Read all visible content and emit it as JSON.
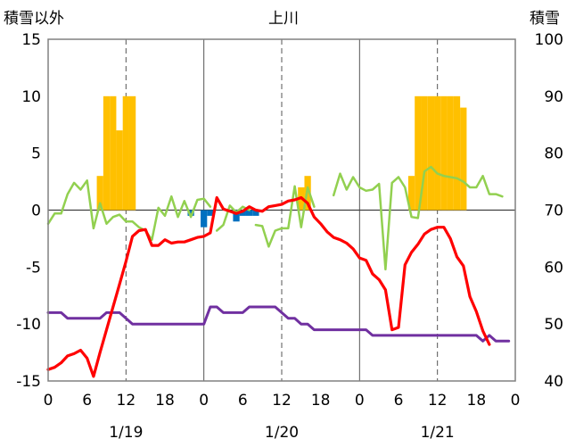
{
  "chart_data": {
    "type": "line",
    "title": "上川",
    "y_left_label": "積雪以外",
    "y_right_label": "積雪",
    "y_left_range": [
      -15,
      15
    ],
    "y_right_range": [
      40,
      100
    ],
    "y_left_ticks": [
      "15",
      "10",
      "5",
      "0",
      "-5",
      "-10",
      "-15"
    ],
    "y_right_ticks": [
      "100",
      "90",
      "80",
      "70",
      "60",
      "50",
      "40"
    ],
    "x_range_hours": [
      0,
      72
    ],
    "x_tick_labels": [
      "0",
      "6",
      "12",
      "18",
      "0",
      "6",
      "12",
      "18",
      "0",
      "6",
      "12",
      "18",
      "0"
    ],
    "date_labels": [
      "1/19",
      "1/20",
      "1/21"
    ],
    "grid": "dashed vertical lines at hour 12 of each day, solid vertical lines at day boundaries, solid horizontal line at y = 0",
    "colors": {
      "snow_depth": "#ffc000",
      "snowfall_positive": "#ffc000",
      "snowfall_negative": "#0070c0",
      "temperature": "#ff0000",
      "wind": "#92d050",
      "pressure_trend": "#7030a0"
    },
    "snowfall_bars": [
      {
        "x": 8,
        "value": 3
      },
      {
        "x": 9,
        "value": 10
      },
      {
        "x": 10,
        "value": 10
      },
      {
        "x": 11,
        "value": 7
      },
      {
        "x": 12,
        "value": 10
      },
      {
        "x": 13,
        "value": 10
      },
      {
        "x": 22,
        "value": -0.5
      },
      {
        "x": 24,
        "value": -1.5
      },
      {
        "x": 25,
        "value": -0.5
      },
      {
        "x": 29,
        "value": -1
      },
      {
        "x": 30,
        "value": -0.5
      },
      {
        "x": 31,
        "value": -0.5
      },
      {
        "x": 32,
        "value": -0.5
      },
      {
        "x": 39,
        "value": 2
      },
      {
        "x": 40,
        "value": 3
      },
      {
        "x": 56,
        "value": 3
      },
      {
        "x": 57,
        "value": 10
      },
      {
        "x": 58,
        "value": 10
      },
      {
        "x": 59,
        "value": 10
      },
      {
        "x": 60,
        "value": 10
      },
      {
        "x": 61,
        "value": 10
      },
      {
        "x": 62,
        "value": 10
      },
      {
        "x": 63,
        "value": 10
      },
      {
        "x": 64,
        "value": 9
      }
    ],
    "series": [
      {
        "key": "temperature",
        "axis": "left",
        "points": [
          [
            0,
            -14
          ],
          [
            1,
            -13.8
          ],
          [
            2,
            -13.4
          ],
          [
            3,
            -12.8
          ],
          [
            4,
            -12.6
          ],
          [
            5,
            -12.3
          ],
          [
            6,
            -13
          ],
          [
            7,
            -14.6
          ],
          [
            8,
            -12.5
          ],
          [
            9,
            -10.5
          ],
          [
            10,
            -8.5
          ],
          [
            11,
            -6.5
          ],
          [
            12,
            -4.5
          ],
          [
            13,
            -2.3
          ],
          [
            14,
            -1.8
          ],
          [
            15,
            -1.7
          ],
          [
            16,
            -3.1
          ],
          [
            17,
            -3.1
          ],
          [
            18,
            -2.6
          ],
          [
            19,
            -2.9
          ],
          [
            20,
            -2.8
          ],
          [
            21,
            -2.8
          ],
          [
            22,
            -2.6
          ],
          [
            23,
            -2.4
          ],
          [
            24,
            -2.3
          ],
          [
            25,
            -2.0
          ],
          [
            26,
            1.1
          ],
          [
            27,
            0.1
          ],
          [
            28,
            -0.1
          ],
          [
            29,
            -0.3
          ],
          [
            30,
            -0.1
          ],
          [
            31,
            0.3
          ],
          [
            32,
            0
          ],
          [
            33,
            -0.1
          ],
          [
            34,
            0.3
          ],
          [
            35,
            0.4
          ],
          [
            36,
            0.5
          ],
          [
            37,
            0.8
          ],
          [
            38,
            0.9
          ],
          [
            39,
            1.1
          ],
          [
            40,
            0.6
          ],
          [
            41,
            -0.6
          ],
          [
            42,
            -1.2
          ],
          [
            43,
            -1.9
          ],
          [
            44,
            -2.4
          ],
          [
            45,
            -2.6
          ],
          [
            46,
            -2.9
          ],
          [
            47,
            -3.4
          ],
          [
            48,
            -4.2
          ],
          [
            49,
            -4.4
          ],
          [
            50,
            -5.6
          ],
          [
            51,
            -6.1
          ],
          [
            52,
            -7.0
          ],
          [
            53,
            -10.5
          ],
          [
            54,
            -10.3
          ],
          [
            55,
            -4.8
          ],
          [
            56,
            -3.7
          ],
          [
            57,
            -3.0
          ],
          [
            58,
            -2.1
          ],
          [
            59,
            -1.7
          ],
          [
            60,
            -1.5
          ],
          [
            61,
            -1.5
          ],
          [
            62,
            -2.5
          ],
          [
            63,
            -4.1
          ],
          [
            64,
            -4.9
          ],
          [
            65,
            -7.6
          ],
          [
            66,
            -8.9
          ],
          [
            67,
            -10.6
          ],
          [
            68,
            -11.8
          ]
        ]
      },
      {
        "key": "wind",
        "axis": "left",
        "gaps_after_hours": [
          25,
          31,
          41
        ],
        "points": [
          [
            0,
            -1.2
          ],
          [
            1,
            -0.3
          ],
          [
            2,
            -0.3
          ],
          [
            3,
            1.4
          ],
          [
            4,
            2.4
          ],
          [
            5,
            1.8
          ],
          [
            6,
            2.6
          ],
          [
            7,
            -1.6
          ],
          [
            8,
            0.6
          ],
          [
            9,
            -1.2
          ],
          [
            10,
            -0.6
          ],
          [
            11,
            -0.4
          ],
          [
            12,
            -1.0
          ],
          [
            13,
            -1.0
          ],
          [
            14,
            -1.5
          ],
          [
            15,
            -1.8
          ],
          [
            16,
            -2.6
          ],
          [
            17,
            0.2
          ],
          [
            18,
            -0.5
          ],
          [
            19,
            1.2
          ],
          [
            20,
            -0.6
          ],
          [
            21,
            0.8
          ],
          [
            22,
            -0.6
          ],
          [
            23,
            0.9
          ],
          [
            24,
            1.0
          ],
          [
            25,
            0.3
          ],
          [
            26,
            -1.8
          ],
          [
            27,
            -1.3
          ],
          [
            28,
            0.4
          ],
          [
            29,
            -0.2
          ],
          [
            30,
            0.3
          ],
          [
            31,
            0.0
          ],
          [
            32,
            -1.3
          ],
          [
            33,
            -1.4
          ],
          [
            34,
            -3.2
          ],
          [
            35,
            -1.8
          ],
          [
            36,
            -1.6
          ],
          [
            37,
            -1.6
          ],
          [
            38,
            2.1
          ],
          [
            39,
            -1.5
          ],
          [
            40,
            2.0
          ],
          [
            41,
            0.3
          ],
          [
            44,
            1.3
          ],
          [
            45,
            3.2
          ],
          [
            46,
            1.8
          ],
          [
            47,
            2.9
          ],
          [
            48,
            2.0
          ],
          [
            49,
            1.7
          ],
          [
            50,
            1.8
          ],
          [
            51,
            2.3
          ],
          [
            52,
            -5.2
          ],
          [
            53,
            2.4
          ],
          [
            54,
            2.9
          ],
          [
            55,
            2.0
          ],
          [
            56,
            -0.6
          ],
          [
            57,
            -0.7
          ],
          [
            58,
            3.4
          ],
          [
            59,
            3.8
          ],
          [
            60,
            3.2
          ],
          [
            61,
            3.0
          ],
          [
            62,
            2.9
          ],
          [
            63,
            2.8
          ],
          [
            64,
            2.5
          ],
          [
            65,
            2.0
          ],
          [
            66,
            2.0
          ],
          [
            67,
            3.0
          ],
          [
            68,
            1.4
          ],
          [
            69,
            1.4
          ],
          [
            70,
            1.2
          ]
        ]
      },
      {
        "key": "pressure_trend",
        "axis": "left",
        "points": [
          [
            0,
            -9
          ],
          [
            1,
            -9
          ],
          [
            2,
            -9
          ],
          [
            3,
            -9.5
          ],
          [
            4,
            -9.5
          ],
          [
            5,
            -9.5
          ],
          [
            6,
            -9.5
          ],
          [
            7,
            -9.5
          ],
          [
            8,
            -9.5
          ],
          [
            9,
            -9
          ],
          [
            10,
            -9
          ],
          [
            11,
            -9
          ],
          [
            12,
            -9.5
          ],
          [
            13,
            -10
          ],
          [
            14,
            -10
          ],
          [
            15,
            -10
          ],
          [
            16,
            -10
          ],
          [
            17,
            -10
          ],
          [
            18,
            -10
          ],
          [
            19,
            -10
          ],
          [
            20,
            -10
          ],
          [
            21,
            -10
          ],
          [
            22,
            -10
          ],
          [
            23,
            -10
          ],
          [
            24,
            -10
          ],
          [
            25,
            -8.5
          ],
          [
            26,
            -8.5
          ],
          [
            27,
            -9
          ],
          [
            28,
            -9
          ],
          [
            29,
            -9
          ],
          [
            30,
            -9
          ],
          [
            31,
            -8.5
          ],
          [
            32,
            -8.5
          ],
          [
            33,
            -8.5
          ],
          [
            34,
            -8.5
          ],
          [
            35,
            -8.5
          ],
          [
            36,
            -9
          ],
          [
            37,
            -9.5
          ],
          [
            38,
            -9.5
          ],
          [
            39,
            -10
          ],
          [
            40,
            -10
          ],
          [
            41,
            -10.5
          ],
          [
            42,
            -10.5
          ],
          [
            43,
            -10.5
          ],
          [
            44,
            -10.5
          ],
          [
            45,
            -10.5
          ],
          [
            46,
            -10.5
          ],
          [
            47,
            -10.5
          ],
          [
            48,
            -10.5
          ],
          [
            49,
            -10.5
          ],
          [
            50,
            -11
          ],
          [
            51,
            -11
          ],
          [
            52,
            -11
          ],
          [
            53,
            -11
          ],
          [
            54,
            -11
          ],
          [
            55,
            -11
          ],
          [
            56,
            -11
          ],
          [
            57,
            -11
          ],
          [
            58,
            -11
          ],
          [
            59,
            -11
          ],
          [
            60,
            -11
          ],
          [
            61,
            -11
          ],
          [
            62,
            -11
          ],
          [
            63,
            -11
          ],
          [
            64,
            -11
          ],
          [
            65,
            -11
          ],
          [
            66,
            -11
          ],
          [
            67,
            -11.5
          ],
          [
            68,
            -11
          ],
          [
            69,
            -11.5
          ],
          [
            70,
            -11.5
          ],
          [
            71,
            -11.5
          ]
        ]
      }
    ]
  }
}
